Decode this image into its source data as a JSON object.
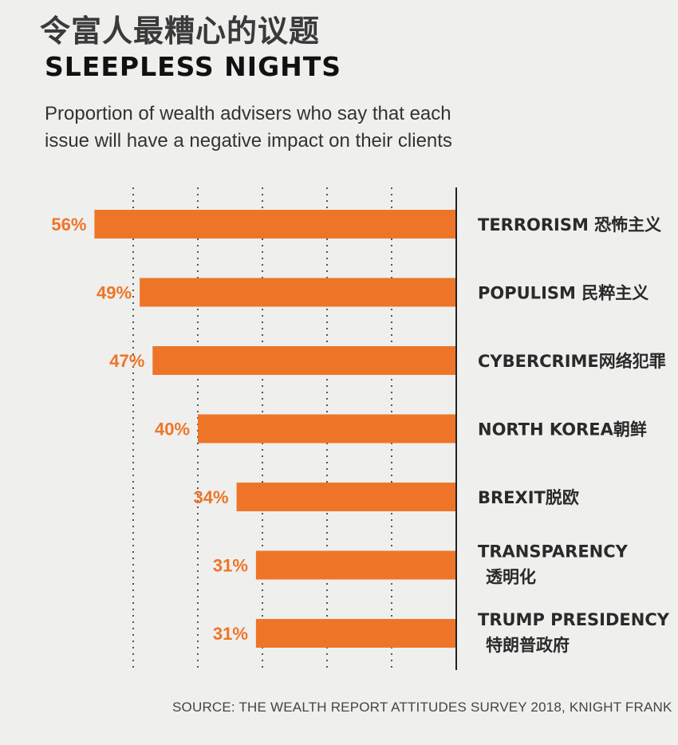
{
  "header": {
    "title_cn": "令富人最糟心的议题",
    "title_en": "SLEEPLESS NIGHTS",
    "subtitle": "Proportion of wealth advisers who say that each issue will have a negative impact on their clients"
  },
  "footer": {
    "source": "SOURCE: THE WEALTH REPORT ATTITUDES SURVEY 2018, KNIGHT FRANK"
  },
  "colors": {
    "bar": "#ee7528",
    "label": "#ee7528"
  },
  "chart_data": {
    "type": "bar",
    "orientation": "horizontal",
    "categories": [
      [
        "TERRORISM 恐怖主义"
      ],
      [
        "POPULISM  民粹主义"
      ],
      [
        "CYBERCRIME网络犯罪"
      ],
      [
        "NORTH KOREA朝鲜"
      ],
      [
        "BREXIT脱欧"
      ],
      [
        "TRANSPARENCY",
        "透明化"
      ],
      [
        "TRUMP PRESIDENCY",
        "特朗普政府"
      ]
    ],
    "values": [
      56,
      49,
      47,
      40,
      34,
      31,
      31
    ],
    "value_labels": [
      "56%",
      "49%",
      "47%",
      "40%",
      "34%",
      "31%",
      "31%"
    ],
    "unit": "%",
    "xlim": [
      0,
      60
    ],
    "grid": true,
    "grid_values": [
      10,
      20,
      30,
      40,
      50
    ],
    "bars_extend_left_from_axis": true
  }
}
